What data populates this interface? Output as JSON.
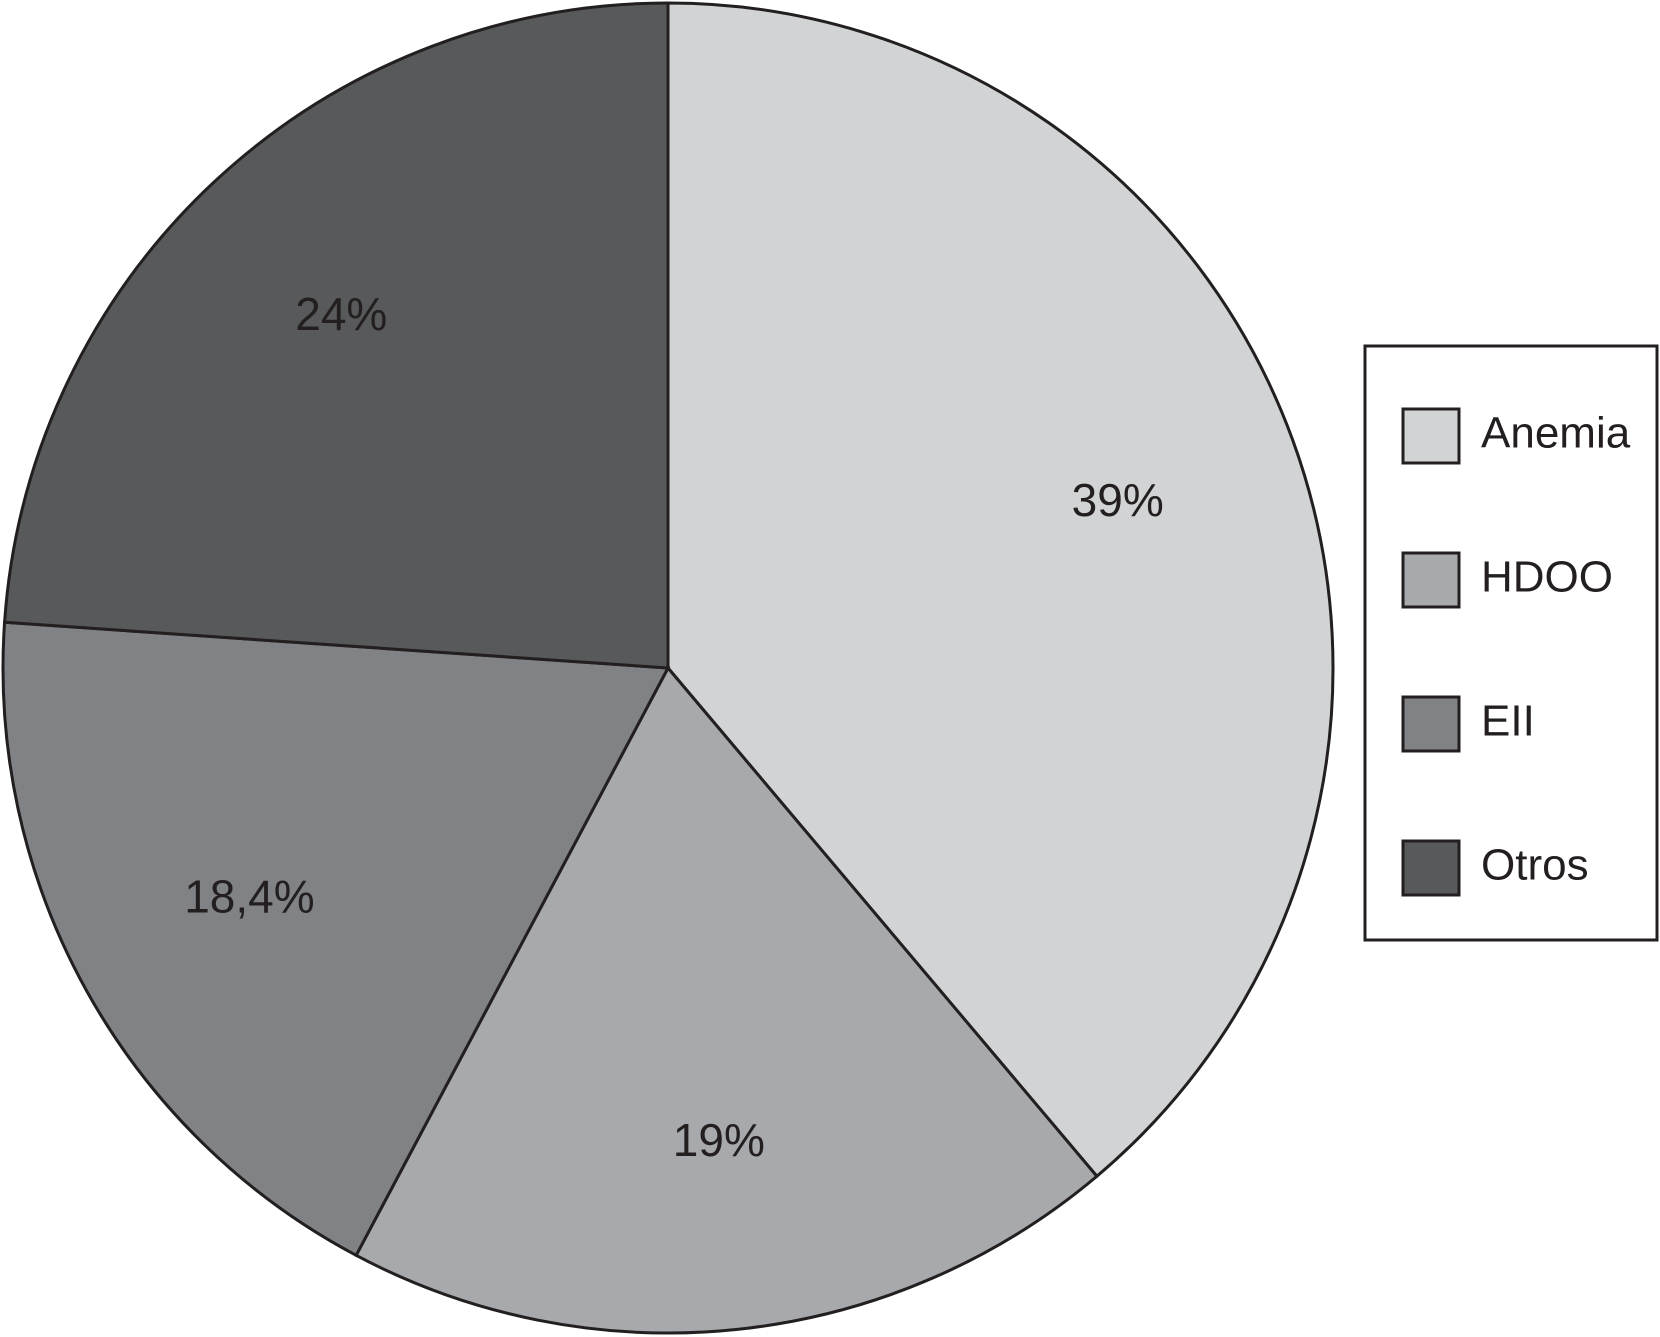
{
  "chart_data": {
    "type": "pie",
    "categories": [
      "Anemia",
      "HDOO",
      "EII",
      "Otros"
    ],
    "values": [
      39,
      19,
      18.4,
      24
    ],
    "value_labels": [
      "39%",
      "19%",
      "18,4%",
      "24%"
    ],
    "colors": [
      "#d1d3d4",
      "#a7a9ac",
      "#808285",
      "#58595b"
    ],
    "legend": "right"
  }
}
